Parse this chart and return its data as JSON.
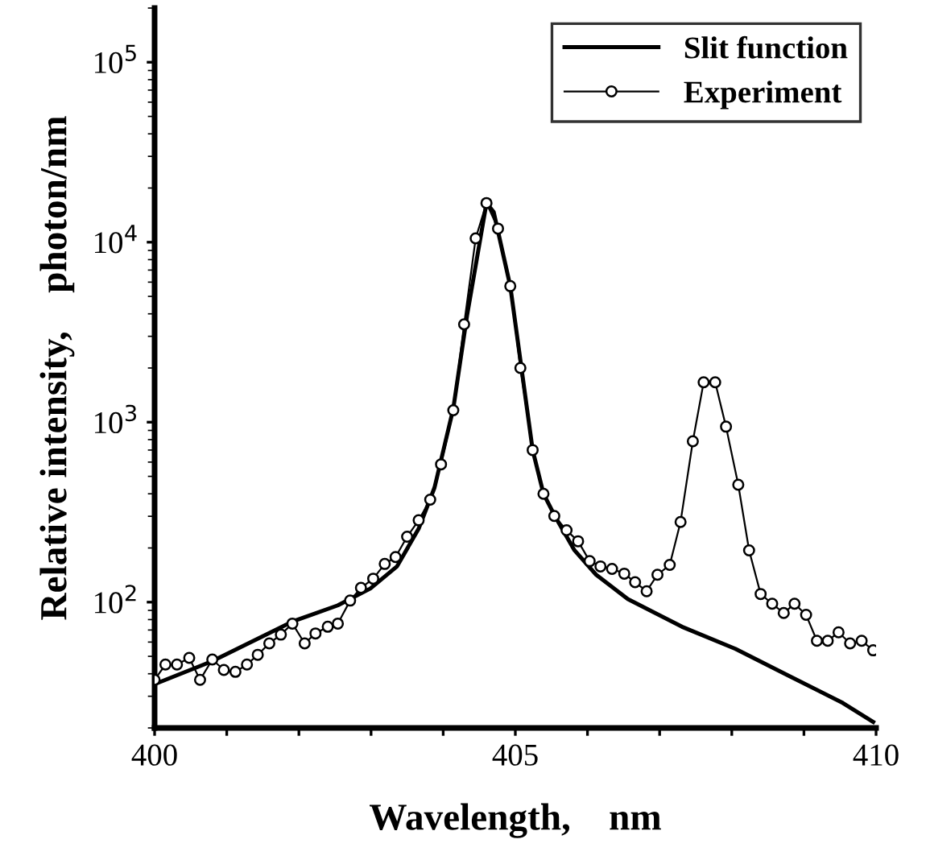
{
  "chart_data": {
    "type": "line",
    "xlabel": "Wavelength,    nm",
    "ylabel": "Relative intensity,    photon/nm",
    "log": "y",
    "xlim": [
      400,
      410
    ],
    "xticks": [
      400,
      {
        "value": 401,
        "label": null
      },
      {
        "value": 402,
        "label": null
      },
      {
        "value": 403,
        "label": null
      },
      {
        "value": 404,
        "label": null
      },
      405,
      {
        "value": 406,
        "label": null
      },
      {
        "value": 407,
        "label": null
      },
      {
        "value": 408,
        "label": null
      },
      {
        "value": 409,
        "label": null
      },
      410
    ],
    "ylim": [
      20,
      200000
    ],
    "yticks": [
      {
        "value": 100,
        "label": "10$^{2}$"
      },
      {
        "value": 1000,
        "label": "10$^{3}$"
      },
      {
        "value": 10000,
        "label": "10$^{4}$"
      },
      {
        "value": 100000,
        "label": "10$^{5}$"
      }
    ],
    "grid": false,
    "legend": "top right",
    "series": [
      {
        "name": "Slit function",
        "color": "#000000",
        "marker": "none",
        "line_style": "solid",
        "x": [
          400.0,
          400.8,
          401.91,
          402.54,
          402.99,
          403.36,
          403.66,
          403.88,
          404.14,
          404.33,
          404.6,
          404.7,
          404.93,
          405.24,
          405.39,
          405.56,
          405.82,
          406.12,
          406.56,
          407.31,
          408.05,
          408.79,
          409.54,
          409.96
        ],
        "values": [
          35,
          47,
          78,
          96,
          119,
          158,
          256,
          433,
          1190,
          3900,
          16500,
          14700,
          5700,
          700,
          400,
          295,
          194,
          142,
          104,
          73,
          55,
          39,
          27.5,
          21.6
        ]
      },
      {
        "name": "Experiment",
        "color": "#000000",
        "marker": "circle",
        "line_style": "solid",
        "x": [
          400.0,
          400.15,
          400.31,
          400.48,
          400.63,
          400.8,
          400.96,
          401.12,
          401.28,
          401.43,
          401.59,
          401.75,
          401.91,
          402.08,
          402.23,
          402.4,
          402.54,
          402.71,
          402.86,
          403.03,
          403.19,
          403.34,
          403.5,
          403.66,
          403.82,
          403.97,
          404.14,
          404.29,
          404.45,
          404.6,
          404.76,
          404.93,
          405.07,
          405.24,
          405.39,
          405.54,
          405.71,
          405.87,
          406.03,
          406.18,
          406.34,
          406.51,
          406.66,
          406.82,
          406.97,
          407.14,
          407.29,
          407.46,
          407.61,
          407.77,
          407.92,
          408.09,
          408.24,
          408.4,
          408.56,
          408.72,
          408.87,
          409.03,
          409.18,
          409.33,
          409.48,
          409.64,
          409.8,
          409.96
        ],
        "values": [
          37,
          45,
          45,
          49,
          37,
          48,
          42,
          41,
          45,
          51,
          59,
          66,
          76,
          59,
          67,
          73,
          76,
          102,
          120,
          135,
          163,
          178,
          231,
          285,
          371,
          583,
          1165,
          3500,
          10500,
          16500,
          11900,
          5700,
          2000,
          700,
          400,
          301,
          251,
          218,
          169,
          158,
          153,
          144,
          129,
          115,
          142,
          161,
          279,
          783,
          1665,
          1665,
          944,
          449,
          194,
          111,
          98,
          87,
          98,
          85,
          61,
          61,
          68,
          59,
          61,
          54
        ]
      }
    ]
  }
}
